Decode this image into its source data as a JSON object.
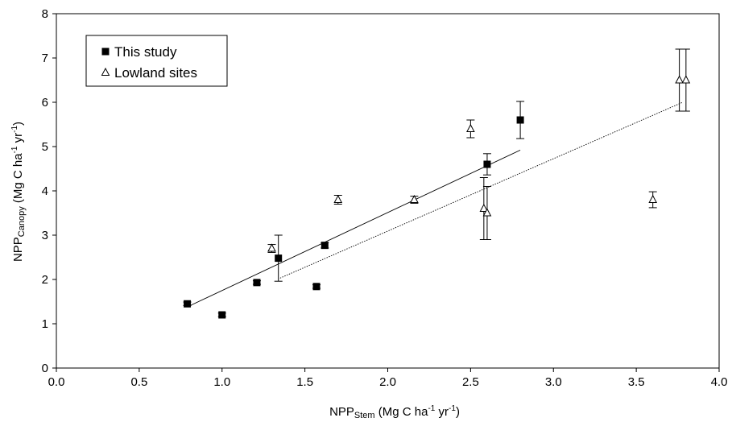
{
  "chart_data": {
    "type": "scatter",
    "title": "",
    "xlabel": {
      "main": "NPP",
      "sub": "Stem",
      "rest": " (Mg C ha",
      "sup1": "-1",
      "mid": " yr",
      "sup2": "-1",
      "end": ")"
    },
    "ylabel": {
      "main": "NPP",
      "sub": "Canopy",
      "rest": " (Mg C ha",
      "sup1": "-1",
      "mid": " yr",
      "sup2": "-1",
      "end": ")"
    },
    "xlim": [
      0,
      4
    ],
    "ylim": [
      0,
      8
    ],
    "x_ticks": [
      "0.0",
      "0.5",
      "1.0",
      "1.5",
      "2.0",
      "2.5",
      "3.0",
      "3.5",
      "4.0"
    ],
    "y_ticks": [
      "0",
      "1",
      "2",
      "3",
      "4",
      "5",
      "6",
      "7",
      "8"
    ],
    "grid": false,
    "legend_position": "top-left",
    "series": [
      {
        "name": "This study",
        "marker": "filled-square",
        "color": "#000000",
        "points": [
          {
            "x": 0.79,
            "y": 1.45,
            "err": 0.04
          },
          {
            "x": 1.0,
            "y": 1.2,
            "err": 0.04
          },
          {
            "x": 1.21,
            "y": 1.93,
            "err": 0.04
          },
          {
            "x": 1.34,
            "y": 2.48,
            "err": 0.52
          },
          {
            "x": 1.57,
            "y": 1.84,
            "err": 0.04
          },
          {
            "x": 1.62,
            "y": 2.77,
            "err": 0.06
          },
          {
            "x": 2.6,
            "y": 4.6,
            "err": 0.24
          },
          {
            "x": 2.8,
            "y": 5.6,
            "err": 0.42
          }
        ],
        "fit": {
          "x": [
            0.79,
            2.8
          ],
          "y": [
            1.38,
            4.92
          ],
          "style": "solid"
        }
      },
      {
        "name": "Lowland sites",
        "marker": "open-triangle",
        "color": "#000000",
        "points": [
          {
            "x": 1.3,
            "y": 2.7,
            "err": 0.09
          },
          {
            "x": 1.7,
            "y": 3.8,
            "err": 0.1
          },
          {
            "x": 2.16,
            "y": 3.8,
            "err": 0.08
          },
          {
            "x": 2.5,
            "y": 5.4,
            "err": 0.2
          },
          {
            "x": 2.58,
            "y": 3.6,
            "err": 0.7
          },
          {
            "x": 2.6,
            "y": 3.5,
            "err": 0.6
          },
          {
            "x": 3.6,
            "y": 3.8,
            "err": 0.18
          },
          {
            "x": 3.76,
            "y": 6.5,
            "err": 0.7
          },
          {
            "x": 3.8,
            "y": 6.5,
            "err": 0.7
          }
        ],
        "fit": {
          "x": [
            1.35,
            3.78
          ],
          "y": [
            2.03,
            6.0
          ],
          "style": "dotted"
        }
      }
    ]
  }
}
